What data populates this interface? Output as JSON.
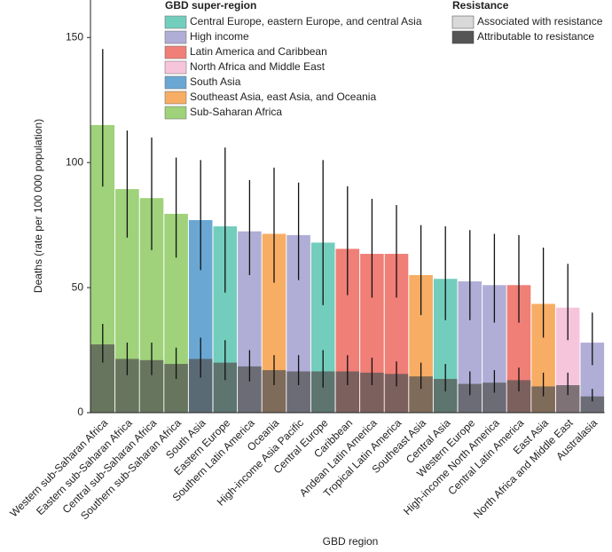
{
  "chart_data": {
    "type": "bar",
    "x_label": "GBD region",
    "y_label": "Deaths (rate per 100 000 population)",
    "categories": [
      "Western sub-Saharan Africa",
      "Eastern sub-Saharan Africa",
      "Central sub-Saharan Africa",
      "Southern sub-Saharan Africa",
      "South Asia",
      "Eastern Europe",
      "Southern Latin America",
      "Oceania",
      "High-income Asia Pacific",
      "Central Europe",
      "Caribbean",
      "Andean Latin America",
      "Tropical Latin America",
      "Southeast Asia",
      "Central Asia",
      "Western Europe",
      "High-income North America",
      "Central Latin America",
      "East Asia",
      "North Africa and Middle East",
      "Australasia"
    ],
    "colors": [
      "#9fd27a",
      "#9fd27a",
      "#9fd27a",
      "#9fd27a",
      "#6aa8d3",
      "#73cdbd",
      "#b0aed6",
      "#f7ad63",
      "#b0aed6",
      "#73cdbd",
      "#f07f77",
      "#f07f77",
      "#f07f77",
      "#f7ad63",
      "#73cdbd",
      "#b0aed6",
      "#b0aed6",
      "#f07f77",
      "#f7ad63",
      "#f6c5dc",
      "#b0aed6"
    ],
    "series": [
      {
        "name": "Associated with resistance",
        "color": "#d9d9d9",
        "values": [
          115,
          89.4,
          85.8,
          79.5,
          77,
          74.5,
          72.5,
          71.5,
          71,
          68,
          65.5,
          63.5,
          63.5,
          55,
          53.5,
          52.5,
          51,
          51,
          43.5,
          42,
          28
        ],
        "lower": [
          90.4,
          70,
          65,
          62,
          57,
          48,
          55,
          52,
          53,
          43,
          47,
          46,
          46,
          39,
          37,
          37,
          36,
          36,
          30,
          29,
          19
        ],
        "upper": [
          145.4,
          112.8,
          110,
          102,
          101,
          106,
          93,
          98,
          92,
          101,
          90.5,
          85.5,
          83,
          75,
          74.5,
          73,
          71.5,
          71,
          66,
          59.5,
          40
        ]
      },
      {
        "name": "Attributable to resistance",
        "color": "#555555",
        "values": [
          27.3,
          21.5,
          21,
          19.5,
          21.5,
          20,
          18.5,
          17,
          16.5,
          16.5,
          16.5,
          16,
          15.5,
          14.5,
          13.5,
          11.5,
          12,
          13,
          10.5,
          11,
          6.5
        ],
        "lower": [
          20,
          15,
          15,
          13.5,
          14,
          13,
          12.5,
          11,
          11,
          10,
          11,
          11,
          10.5,
          9.5,
          8.5,
          7,
          8,
          8.5,
          6.5,
          7,
          4.5
        ],
        "upper": [
          35.5,
          28,
          28,
          26,
          30,
          29,
          25,
          23,
          23,
          25,
          23,
          22,
          20.5,
          20,
          19.5,
          16.5,
          17,
          18,
          16,
          16,
          9.5
        ]
      }
    ],
    "super_region_legend": {
      "title": "GBD super-region",
      "items": [
        {
          "name": "Central Europe, eastern Europe, and central Asia",
          "color": "#73cdbd"
        },
        {
          "name": "High income",
          "color": "#b0aed6"
        },
        {
          "name": "Latin America and Caribbean",
          "color": "#f07f77"
        },
        {
          "name": "North Africa and Middle East",
          "color": "#f6c5dc"
        },
        {
          "name": "South Asia",
          "color": "#6aa8d3"
        },
        {
          "name": "Southeast Asia, east Asia, and Oceania",
          "color": "#f7ad63"
        },
        {
          "name": "Sub-Saharan Africa",
          "color": "#9fd27a"
        }
      ]
    },
    "resistance_legend_title": "Resistance",
    "ylim": [
      0,
      165
    ],
    "yticks": [
      0,
      50,
      100,
      150
    ]
  }
}
